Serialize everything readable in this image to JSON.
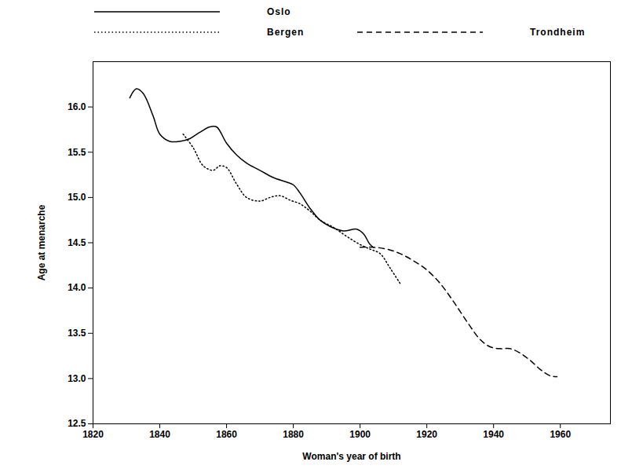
{
  "chart_data": {
    "type": "line",
    "x_label": "Woman's year of birth",
    "y_label": "Age at menarche",
    "xlim": [
      1820,
      1975
    ],
    "xticks": [
      1820,
      1840,
      1860,
      1880,
      1900,
      1920,
      1940,
      1960
    ],
    "ylim": [
      12.5,
      16.5
    ],
    "yticks": [
      12.5,
      {
        "value": 13,
        "label": "13.0"
      },
      13.5,
      {
        "value": 14,
        "label": "14.0"
      },
      14.5,
      {
        "value": 15,
        "label": "15.0"
      },
      15.5,
      {
        "value": 16,
        "label": "16.0"
      }
    ],
    "grid": false,
    "legend": "top",
    "series": [
      {
        "name": "Oslo",
        "color": "#000000",
        "line_style": "solid",
        "x": [
          1831,
          1833,
          1835,
          1838,
          1840,
          1843,
          1846,
          1849,
          1852,
          1855,
          1857,
          1860,
          1863,
          1866,
          1870,
          1874,
          1878,
          1880,
          1882,
          1885,
          1888,
          1891,
          1895,
          1899,
          1901,
          1903,
          1904
        ],
        "values": [
          16.1,
          16.2,
          16.15,
          15.9,
          15.7,
          15.62,
          15.62,
          15.65,
          15.72,
          15.78,
          15.78,
          15.6,
          15.47,
          15.38,
          15.3,
          15.22,
          15.17,
          15.14,
          15.05,
          14.88,
          14.75,
          14.68,
          14.63,
          14.65,
          14.6,
          14.48,
          14.45
        ]
      },
      {
        "name": "Bergen",
        "color": "#000000",
        "line_style": "dotted",
        "x": [
          1847,
          1850,
          1853,
          1856,
          1858,
          1860,
          1863,
          1866,
          1870,
          1873,
          1876,
          1879,
          1882,
          1885,
          1888,
          1892,
          1896,
          1900,
          1903,
          1906,
          1909,
          1912
        ],
        "values": [
          15.7,
          15.55,
          15.35,
          15.3,
          15.35,
          15.33,
          15.15,
          15.0,
          14.96,
          15.0,
          15.02,
          14.97,
          14.93,
          14.85,
          14.75,
          14.67,
          14.57,
          14.48,
          14.43,
          14.38,
          14.22,
          14.05
        ]
      },
      {
        "name": "Trondheim",
        "color": "#000000",
        "line_style": "dashed",
        "x": [
          1900,
          1904,
          1908,
          1912,
          1916,
          1920,
          1924,
          1928,
          1932,
          1936,
          1939,
          1942,
          1945,
          1948,
          1951,
          1954,
          1957,
          1959
        ],
        "values": [
          14.45,
          14.45,
          14.43,
          14.38,
          14.3,
          14.2,
          14.05,
          13.85,
          13.63,
          13.43,
          13.35,
          13.33,
          13.33,
          13.28,
          13.2,
          13.1,
          13.03,
          13.02
        ]
      }
    ]
  }
}
